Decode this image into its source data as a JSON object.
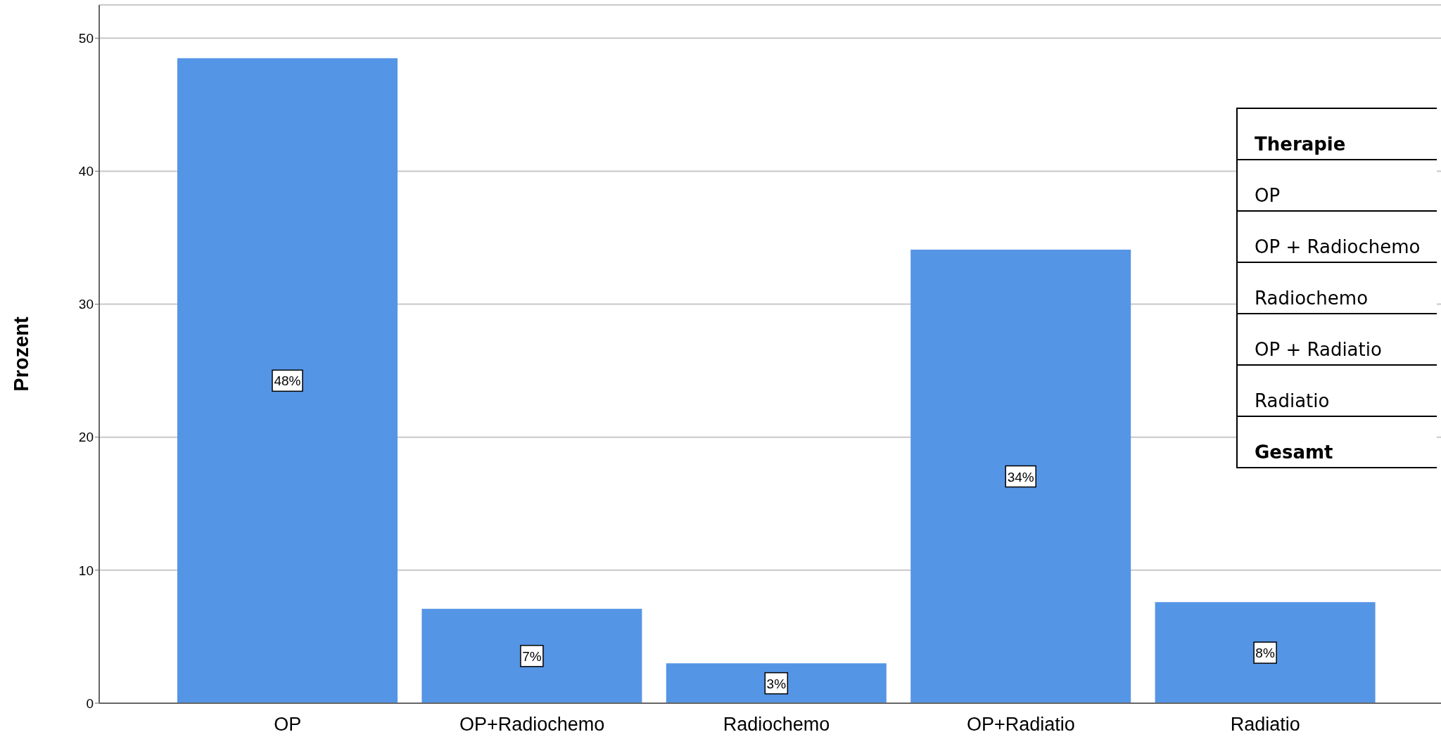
{
  "chart_data": {
    "type": "bar",
    "ylabel": "Prozent",
    "categories": [
      "OP",
      "OP+Radiochemo",
      "Radiochemo",
      "OP+Radiatio",
      "Radiatio"
    ],
    "values": [
      48.5,
      7.1,
      3.0,
      34.1,
      7.6
    ],
    "value_labels": [
      "48%",
      "7%",
      "3%",
      "34%",
      "8%"
    ],
    "color": "#5595e5",
    "ylim": [
      0,
      52.5
    ],
    "yticks": [
      0,
      10,
      20,
      30,
      40,
      50
    ],
    "grid": "y",
    "annotations": [
      "Therapie",
      "OP",
      "OP + Radiochemo",
      "Radiochemo",
      "OP + Radiatio",
      "Radiatio",
      "Gesamt"
    ]
  }
}
